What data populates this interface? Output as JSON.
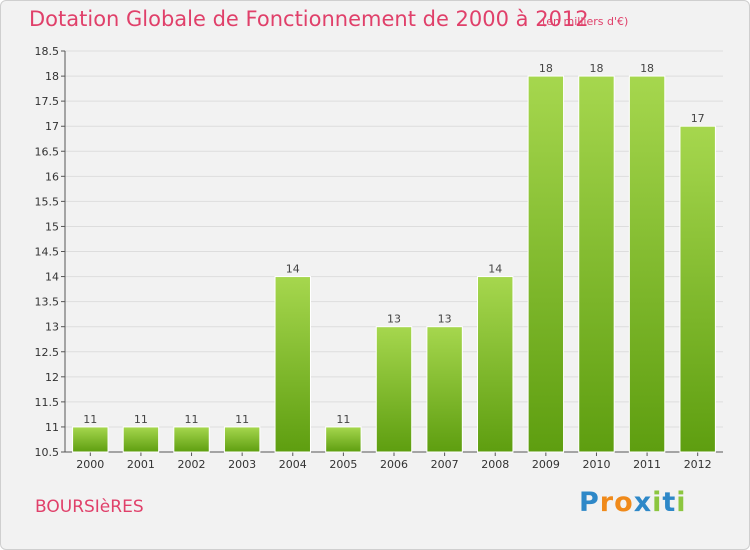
{
  "colors": {
    "title": "#e0406a",
    "bar_top": "#a6d74e",
    "bar_bottom": "#5e9e10",
    "plot_bg": "#f2f2f2",
    "grid": "#dddddd"
  },
  "commune_name": "BOURSIèRES",
  "logo": {
    "letters": [
      "P",
      "r",
      "o",
      "x",
      "i",
      "t",
      "i"
    ],
    "letter_colors": [
      "#2e88c8",
      "#f08a1a",
      "#f08a1a",
      "#2e88c8",
      "#8cc63f",
      "#2e88c8",
      "#8cc63f"
    ]
  },
  "chart_data": {
    "type": "bar",
    "title": "Dotation Globale de Fonctionnement de 2000 à 2012",
    "subtitle": "(en milliers d'€)",
    "categories": [
      "2000",
      "2001",
      "2002",
      "2003",
      "2004",
      "2005",
      "2006",
      "2007",
      "2008",
      "2009",
      "2010",
      "2011",
      "2012"
    ],
    "values": [
      11,
      11,
      11,
      11,
      14,
      11,
      13,
      13,
      14,
      18,
      18,
      18,
      17
    ],
    "data_labels": [
      "11",
      "11",
      "11",
      "11",
      "14",
      "11",
      "13",
      "13",
      "14",
      "18",
      "18",
      "18",
      "17"
    ],
    "ylim": [
      10.5,
      18.5
    ],
    "yticks": [
      10.5,
      11,
      11.5,
      12,
      12.5,
      13,
      13.5,
      14,
      14.5,
      15,
      15.5,
      16,
      16.5,
      17,
      17.5,
      18,
      18.5
    ],
    "ytick_labels": [
      "10.5",
      "11",
      "11.5",
      "12",
      "12.5",
      "13",
      "13.5",
      "14",
      "14.5",
      "15",
      "15.5",
      "16",
      "16.5",
      "17",
      "17.5",
      "18",
      "18.5"
    ],
    "xlabel": "",
    "ylabel": "",
    "grid": true
  }
}
